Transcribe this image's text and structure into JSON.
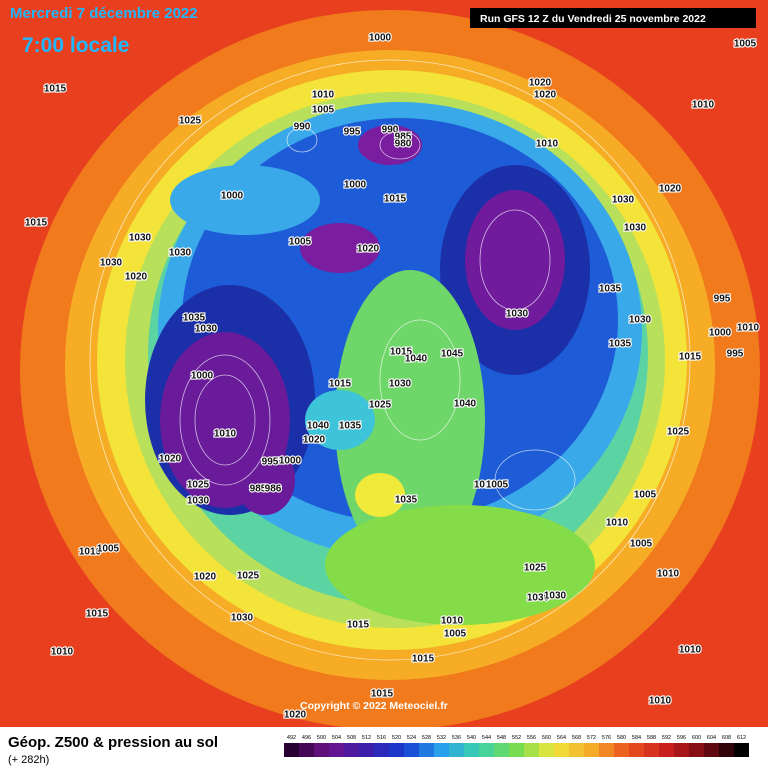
{
  "header": {
    "date": "Mercredi 7 décembre 2022",
    "time": "7:00 locale",
    "run": "Run GFS 12 Z du Vendredi 25 novembre 2022"
  },
  "footer": {
    "title": "Géop. Z500 & pression au sol",
    "subtitle": "(+ 282h)",
    "copyright": "Copyright © 2022 Meteociel.fr"
  },
  "legend": {
    "levels": [
      492,
      496,
      500,
      504,
      508,
      512,
      516,
      520,
      524,
      528,
      532,
      536,
      540,
      544,
      548,
      552,
      556,
      560,
      564,
      568,
      572,
      576,
      580,
      584,
      588,
      592,
      596,
      600,
      604,
      608,
      612
    ]
  },
  "isobar_labels": [
    "1000",
    "1005",
    "1015",
    "1010",
    "1005",
    "1020",
    "1020",
    "1010",
    "1025",
    "990",
    "995",
    "990",
    "985",
    "980",
    "1010",
    "1020",
    "1000",
    "1000",
    "1015",
    "1030",
    "1015",
    "1030",
    "1005",
    "1020",
    "1030",
    "1030",
    "1030",
    "1020",
    "1035",
    "995",
    "1035",
    "1030",
    "1030",
    "1030",
    "1000",
    "1010",
    "1015",
    "1040",
    "1045",
    "1035",
    "1015",
    "995",
    "1000",
    "1015",
    "1030",
    "1025",
    "1040",
    "1010",
    "1040",
    "1035",
    "1020",
    "1025",
    "1020",
    "995",
    "1000",
    "1010",
    "1005",
    "1035",
    "1025",
    "1030",
    "985",
    "986",
    "1005",
    "1010",
    "1005",
    "1010",
    "1005",
    "1020",
    "1025",
    "1025",
    "1010",
    "1030",
    "1030",
    "1015",
    "1030",
    "1015",
    "1010",
    "1005",
    "1010",
    "1010",
    "1015",
    "1015",
    "1010",
    "1020"
  ]
}
